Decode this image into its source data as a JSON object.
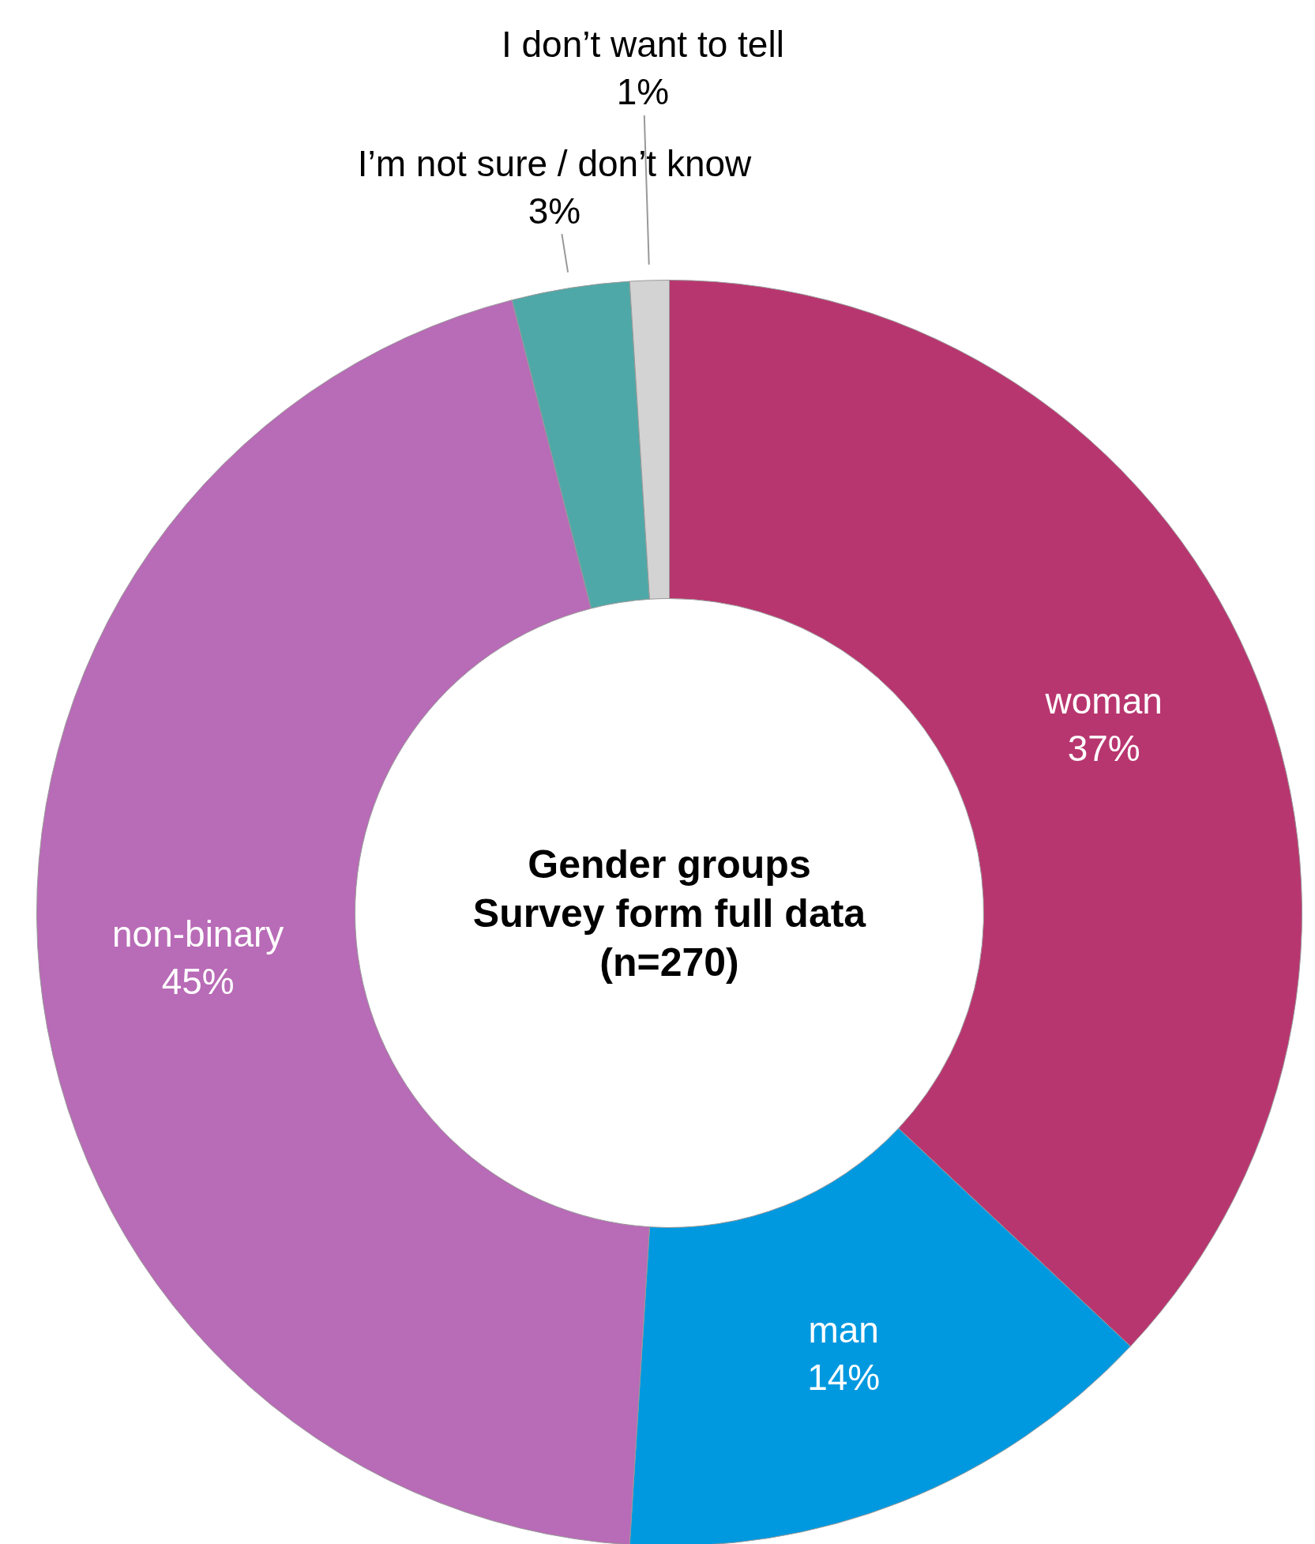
{
  "chart_data": {
    "type": "donut",
    "title": "Gender groups",
    "subtitle": "Survey form full data",
    "annotations": [
      "(n=270)"
    ],
    "categories": [
      "woman",
      "man",
      "non-binary",
      "I’m not sure / don’t know",
      "I don’t want to tell"
    ],
    "values": [
      37,
      14,
      45,
      3,
      1
    ],
    "colors": [
      "#b8366f",
      "#0099e0",
      "#b86bb6",
      "#4fa8a8",
      "#d3d3d3"
    ],
    "value_labels": [
      "37%",
      "14%",
      "45%",
      "3%",
      "1%"
    ]
  }
}
